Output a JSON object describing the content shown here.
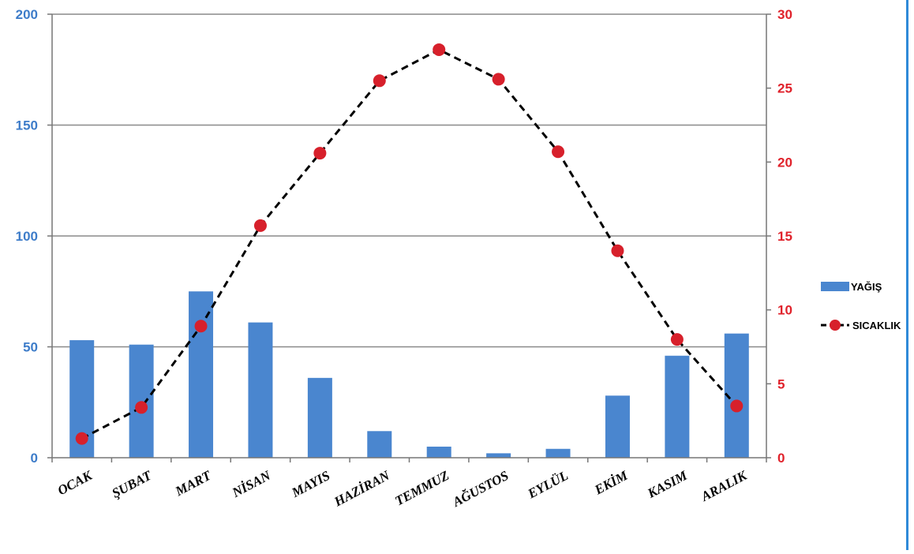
{
  "chart_data": {
    "type": "bar+line",
    "categories": [
      "OCAK",
      "ŞUBAT",
      "MART",
      "NİSAN",
      "MAYIS",
      "HAZİRAN",
      "TEMMUZ",
      "AĞUSTOS",
      "EYLÜL",
      "EKİM",
      "KASIM",
      "ARALIK"
    ],
    "series": [
      {
        "name": "YAĞIŞ",
        "type": "bar",
        "axis": "left",
        "color": "#4a86cf",
        "values": [
          53,
          51,
          75,
          61,
          36,
          12,
          5,
          2,
          4,
          28,
          46,
          56
        ]
      },
      {
        "name": "SICAKLIK",
        "type": "line",
        "axis": "right",
        "color": "#d7202b",
        "line_color": "#000000",
        "line_style": "dashed",
        "values": [
          1.3,
          3.4,
          8.9,
          15.7,
          20.6,
          25.5,
          27.6,
          25.6,
          20.7,
          14,
          8,
          3.5
        ]
      }
    ],
    "y_left": {
      "min": 0,
      "max": 200,
      "ticks": [
        0,
        50,
        100,
        150,
        200
      ],
      "color": "#3d7cc9"
    },
    "y_right": {
      "min": 0,
      "max": 30,
      "ticks": [
        0,
        5,
        10,
        15,
        20,
        25,
        30
      ],
      "color": "#e0222b"
    },
    "grid": true,
    "legend_position": "right",
    "title": "",
    "xlabel": "",
    "ylabel": ""
  }
}
